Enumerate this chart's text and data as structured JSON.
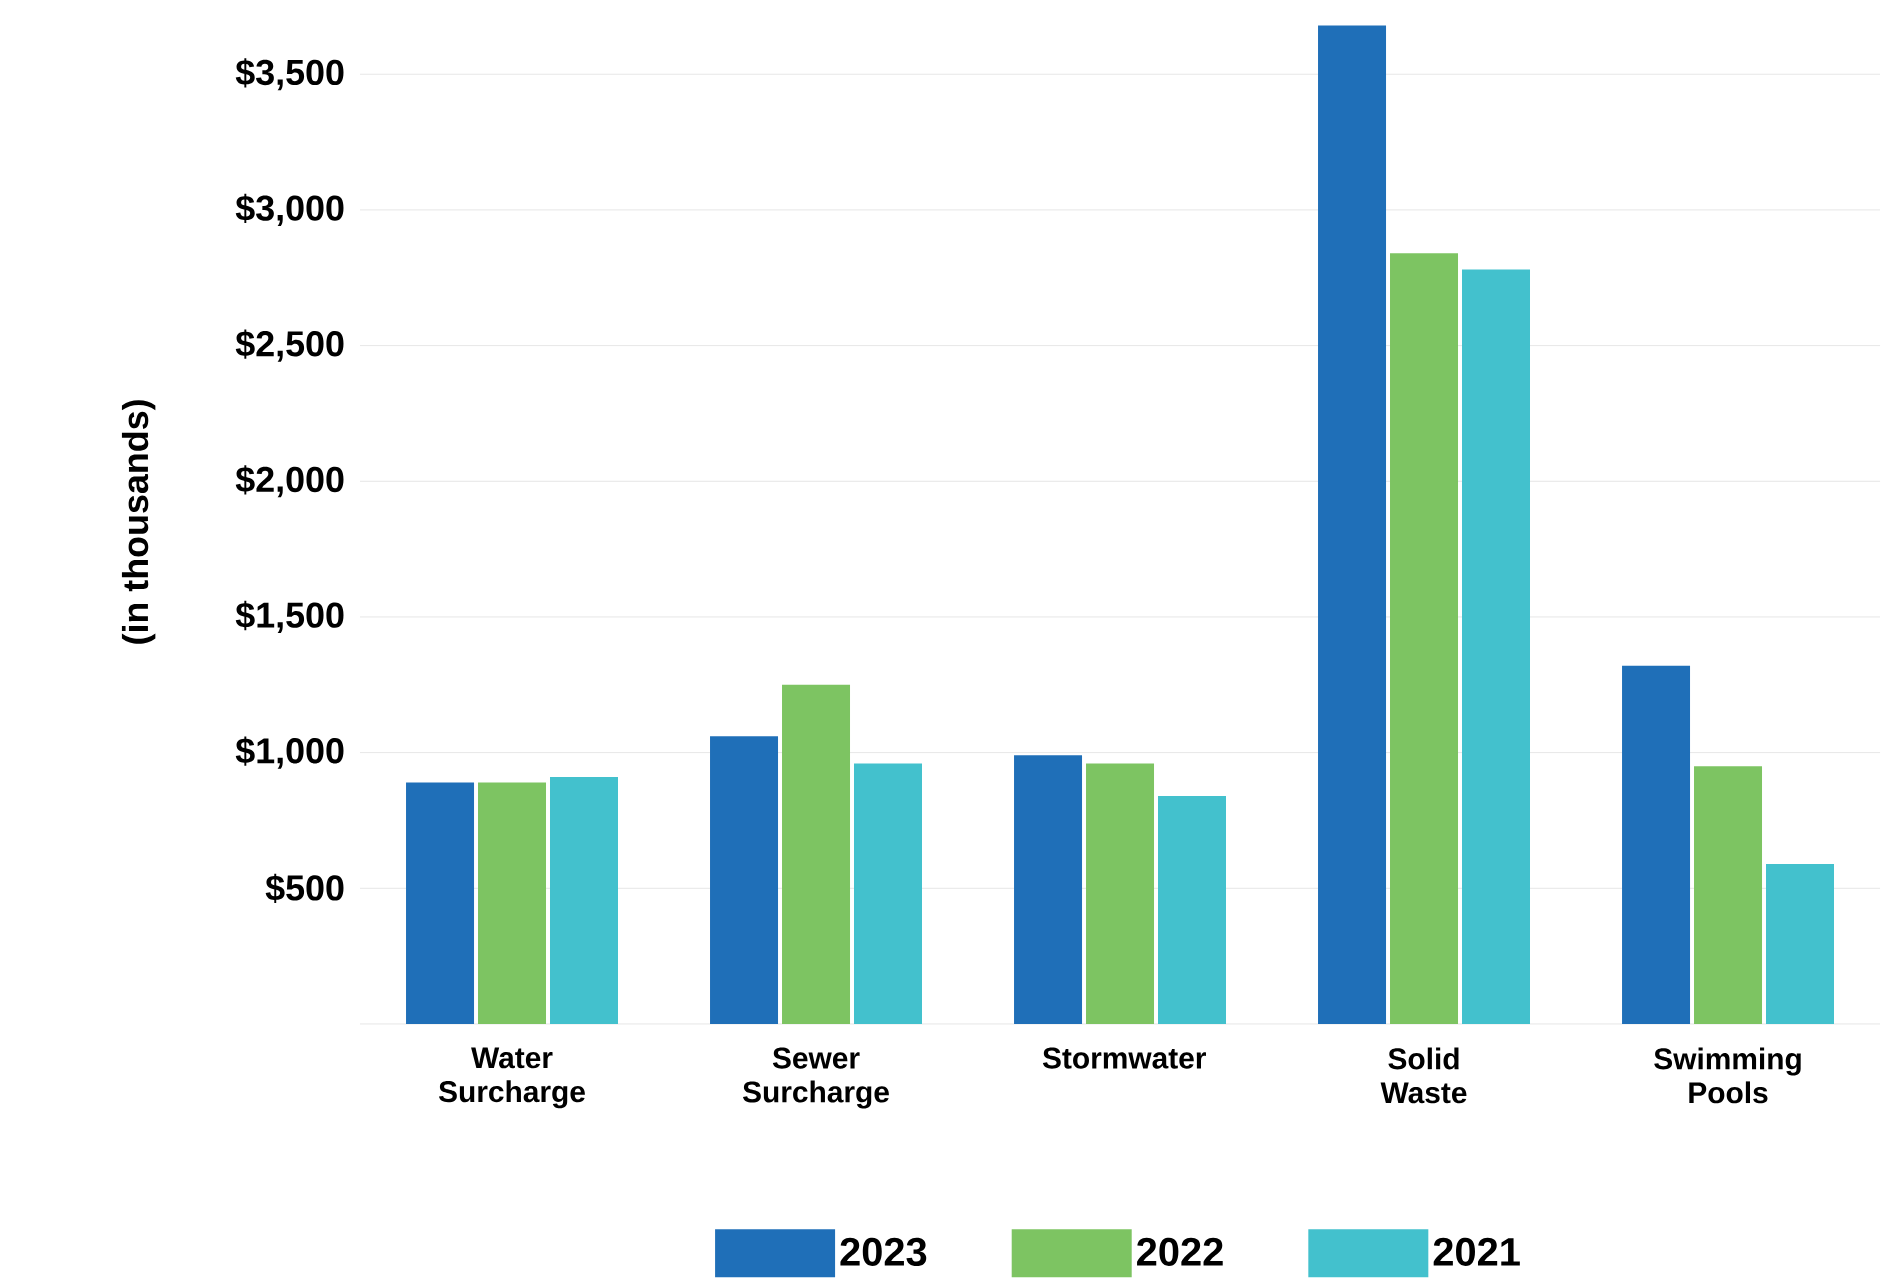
{
  "chart_data": {
    "type": "bar",
    "ylabel": "(in thousands)",
    "categories": [
      "Water Surcharge",
      "Sewer Surcharge",
      "Stormwater",
      "Solid Waste",
      "Swimming Pools"
    ],
    "series": [
      {
        "name": "2023",
        "color": "#1f6fb8",
        "values": [
          890,
          1060,
          990,
          3680,
          1320
        ]
      },
      {
        "name": "2022",
        "color": "#7dc462",
        "values": [
          890,
          1250,
          960,
          2840,
          950
        ]
      },
      {
        "name": "2021",
        "color": "#43c1cd",
        "values": [
          910,
          960,
          840,
          2780,
          590
        ]
      }
    ],
    "ylim": [
      0,
      3700
    ],
    "yticks": [
      {
        "value": 0,
        "label": null
      },
      {
        "value": 500,
        "label": "$500"
      },
      {
        "value": 1000,
        "label": "$1,000"
      },
      {
        "value": 1500,
        "label": "$1,500"
      },
      {
        "value": 2000,
        "label": "$2,000"
      },
      {
        "value": 2500,
        "label": "$2,500"
      },
      {
        "value": 3000,
        "label": "$3,000"
      },
      {
        "value": 3500,
        "label": "$3,500"
      }
    ],
    "grid": "y",
    "legend": "bottom"
  }
}
